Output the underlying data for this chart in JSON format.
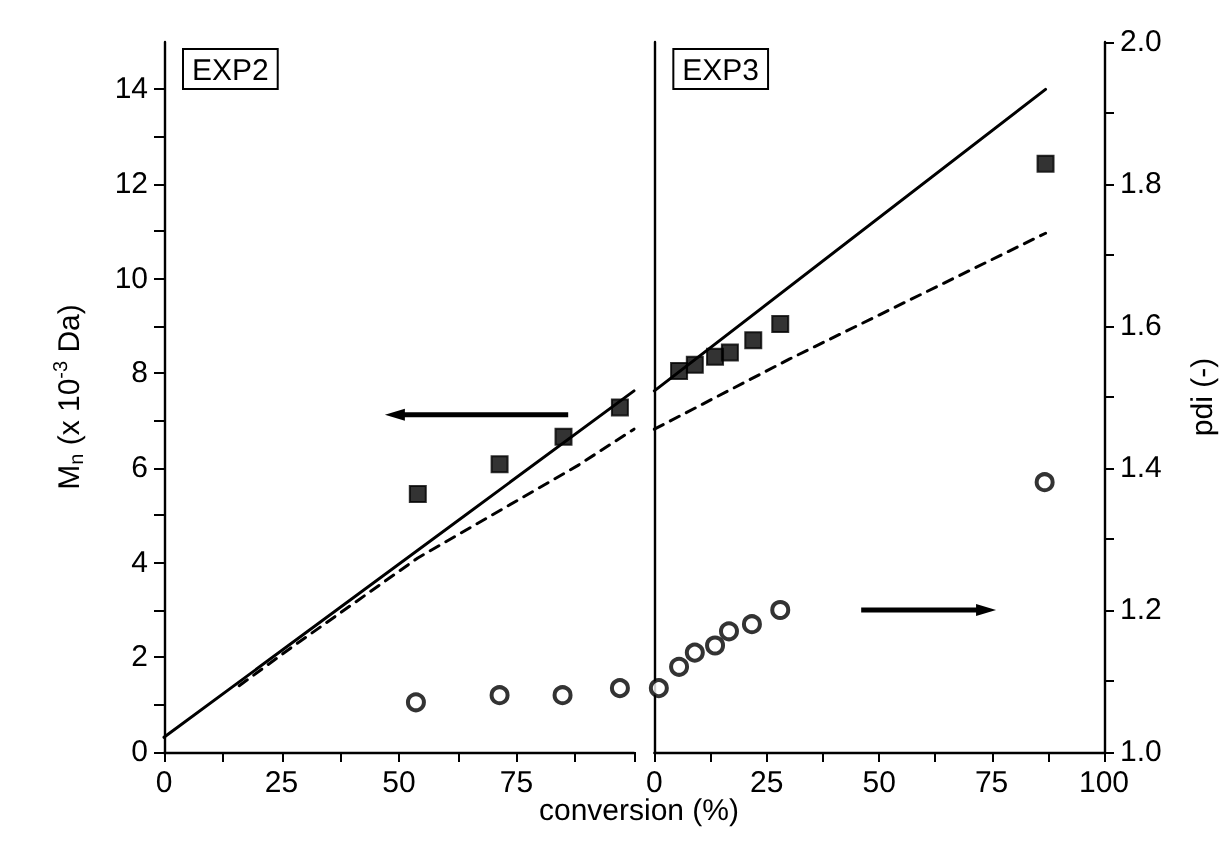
{
  "chart_data": [
    {
      "type": "scatter",
      "xlabel": "conversion (%)",
      "ylabel": "M$_{n}$ (x 10$^{-3}$ Da)",
      "annotations": [
        "EXP2"
      ],
      "xlim": [
        0,
        100
      ],
      "xticks": [
        0,
        {
          "value": 12.5,
          "label": null
        },
        25,
        {
          "value": 37.5,
          "label": null
        },
        50,
        {
          "value": 62.5,
          "label": null
        },
        75,
        {
          "value": 87.5,
          "label": null
        },
        {
          "value": 100,
          "label": null
        }
      ],
      "ylim": [
        0,
        15
      ],
      "yticks": [
        0,
        {
          "value": 1,
          "label": null
        },
        2,
        {
          "value": 3,
          "label": null
        },
        4,
        {
          "value": 5,
          "label": null
        },
        6,
        {
          "value": 7,
          "label": null
        },
        8,
        {
          "value": 9,
          "label": null
        },
        10,
        {
          "value": 11,
          "label": null
        },
        12,
        {
          "value": 13,
          "label": null
        },
        14
      ],
      "y2lim": [
        1,
        2
      ],
      "series": [
        {
          "marker": "square",
          "color": "#000000",
          "x": [
            54,
            71.4,
            85,
            97
          ],
          "values": [
            5.45,
            6.08,
            6.66,
            7.28
          ]
        },
        {
          "marker": "circle",
          "color": "#000000",
          "axis": "y2",
          "x": [
            53.6,
            71.4,
            84.8,
            97
          ],
          "values": [
            1.07,
            1.08,
            1.08,
            1.09
          ]
        },
        {
          "type": "line",
          "marker": "none",
          "line_style": "solid",
          "color": "#000000",
          "x": [
            0,
            100
          ],
          "values": [
            0.31,
            7.63
          ]
        },
        {
          "type": "line",
          "marker": "none",
          "line_style": "dashed",
          "color": "#000000",
          "x": [
            16,
            27,
            54,
            88,
            100
          ],
          "values": [
            1.4,
            2.2,
            4.1,
            6.05,
            6.82
          ]
        }
      ]
    },
    {
      "type": "scatter",
      "y2label": "pdi (-)",
      "annotations": [
        "EXP3"
      ],
      "xlim": [
        0,
        100
      ],
      "xticks": [
        0,
        {
          "value": 12.5,
          "label": null
        },
        25,
        {
          "value": 37.5,
          "label": null
        },
        50,
        {
          "value": 62.5,
          "label": null
        },
        75,
        {
          "value": 87.5,
          "label": null
        },
        100
      ],
      "ylim": [
        0,
        15
      ],
      "y2lim": [
        1,
        2
      ],
      "y2ticks": [
        {
          "value": 1,
          "label": "1.0"
        },
        {
          "value": 1.1,
          "label": null
        },
        {
          "value": 1.2,
          "label": "1.2"
        },
        {
          "value": 1.3,
          "label": null
        },
        {
          "value": 1.4,
          "label": "1.4"
        },
        {
          "value": 1.5,
          "label": null
        },
        {
          "value": 1.6,
          "label": "1.6"
        },
        {
          "value": 1.7,
          "label": null
        },
        {
          "value": 1.8,
          "label": "1.8"
        },
        {
          "value": 1.9,
          "label": null
        },
        {
          "value": 2,
          "label": "2.0"
        }
      ],
      "series": [
        {
          "marker": "square",
          "color": "#000000",
          "x": [
            5.5,
            9,
            13.5,
            16.8,
            22,
            28,
            87
          ],
          "values": [
            8.05,
            8.18,
            8.35,
            8.44,
            8.7,
            9.04,
            12.43
          ]
        },
        {
          "marker": "circle",
          "color": "#000000",
          "axis": "y2",
          "x": [
            1,
            5.5,
            9,
            13.5,
            16.6,
            21.7,
            28,
            86.8
          ],
          "values": [
            1.09,
            1.12,
            1.14,
            1.15,
            1.17,
            1.18,
            1.2,
            1.38
          ]
        },
        {
          "type": "line",
          "marker": "none",
          "line_style": "solid",
          "color": "#000000",
          "x": [
            0,
            87
          ],
          "values": [
            7.63,
            14.0
          ]
        },
        {
          "type": "line",
          "marker": "none",
          "line_style": "dashed",
          "color": "#000000",
          "x": [
            0,
            30,
            87
          ],
          "values": [
            6.82,
            8.3,
            10.96
          ]
        }
      ]
    }
  ]
}
